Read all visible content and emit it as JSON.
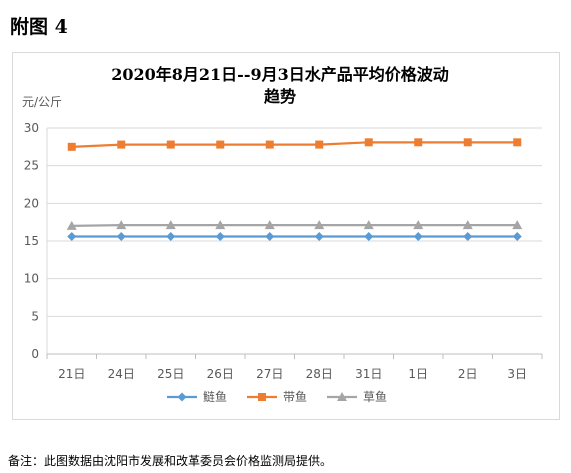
{
  "heading": "附图 4",
  "note": "备注：此图数据由沈阳市发展和改革委员会价格监测局提供。",
  "chart_data": {
    "type": "line",
    "title_line1": "2020年8月21日--9月3日水产品平均价格波动",
    "title_line2": "趋势",
    "ylabel": "元/公斤",
    "categories": [
      "21日",
      "24日",
      "25日",
      "26日",
      "27日",
      "28日",
      "31日",
      "1日",
      "2日",
      "3日"
    ],
    "ylim": [
      0,
      30
    ],
    "yticks": [
      0,
      5,
      10,
      15,
      20,
      25,
      30
    ],
    "grid": true,
    "legend_position": "bottom",
    "series": [
      {
        "name": "鲢鱼",
        "color": "#5b9bd5",
        "marker": "diamond",
        "values": [
          15.6,
          15.6,
          15.6,
          15.6,
          15.6,
          15.6,
          15.6,
          15.6,
          15.6,
          15.6
        ]
      },
      {
        "name": "带鱼",
        "color": "#ed7d31",
        "marker": "square",
        "values": [
          27.5,
          27.8,
          27.8,
          27.8,
          27.8,
          27.8,
          28.1,
          28.1,
          28.1,
          28.1
        ]
      },
      {
        "name": "草鱼",
        "color": "#a5a5a5",
        "marker": "triangle",
        "values": [
          17.0,
          17.1,
          17.1,
          17.1,
          17.1,
          17.1,
          17.1,
          17.1,
          17.1,
          17.1
        ]
      }
    ]
  }
}
